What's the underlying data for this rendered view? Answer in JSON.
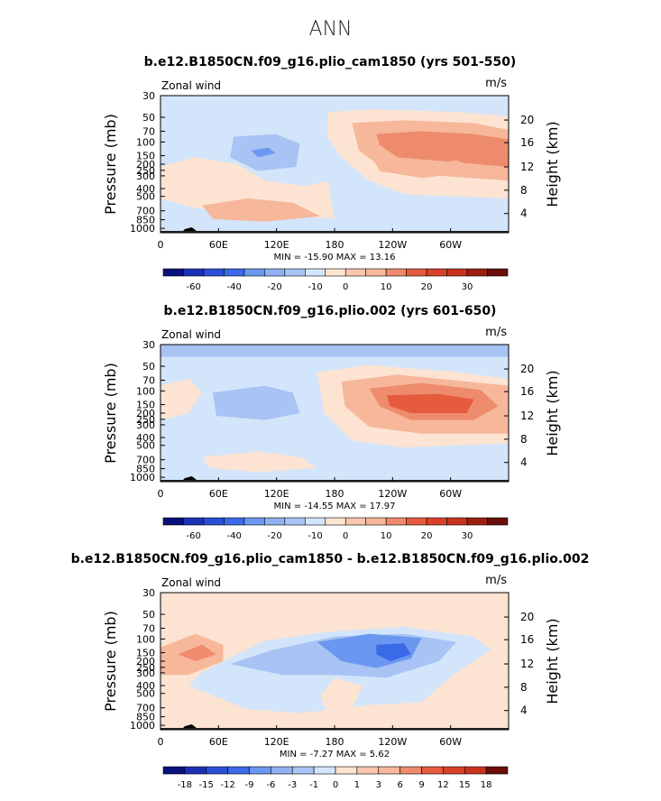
{
  "title": "ANN",
  "colors": {
    "p60": "#08107a",
    "p50": "#1d30b8",
    "p40": "#2a4fd6",
    "p30": "#3a6ae8",
    "p20": "#6c97f0",
    "p10": "#a8c3f4",
    "p0n": "#d3e5fa",
    "p0p": "#fde3d2",
    "p10p": "#f6b79a",
    "p20p": "#ee8b6c",
    "p30p": "#e65b3d",
    "p40p": "#c8331e"
  },
  "panels": [
    {
      "title": "b.e12.B1850CN.f09_g16.plio_cam1850 (yrs 501-550)",
      "left_label": "Zonal wind",
      "right_label": "m/s",
      "min_max": "MIN = -15.90   MAX =  13.16",
      "colorbar_labels": [
        "-60",
        "-40",
        "-20",
        "-10",
        "0",
        "10",
        "20",
        "30"
      ],
      "colorbar_colors": [
        "#08107a",
        "#1d30b8",
        "#2a4fd6",
        "#3a6ae8",
        "#6c97f0",
        "#8fb1f2",
        "#a8c3f4",
        "#d3e5fa",
        "#fde3d2",
        "#f8c7ae",
        "#f6b79a",
        "#ee8b6c",
        "#e65b3d",
        "#d9402a",
        "#c8331e",
        "#9a1f12",
        "#6b0e08"
      ]
    },
    {
      "title": "b.e12.B1850CN.f09_g16.plio.002 (yrs 601-650)",
      "left_label": "Zonal wind",
      "right_label": "m/s",
      "min_max": "MIN = -14.55   MAX =  17.97",
      "colorbar_labels": [
        "-60",
        "-40",
        "-20",
        "-10",
        "0",
        "10",
        "20",
        "30"
      ],
      "colorbar_colors": [
        "#08107a",
        "#1d30b8",
        "#2a4fd6",
        "#3a6ae8",
        "#6c97f0",
        "#8fb1f2",
        "#a8c3f4",
        "#d3e5fa",
        "#fde3d2",
        "#f8c7ae",
        "#f6b79a",
        "#ee8b6c",
        "#e65b3d",
        "#d9402a",
        "#c8331e",
        "#9a1f12",
        "#6b0e08"
      ]
    },
    {
      "title": "b.e12.B1850CN.f09_g16.plio_cam1850 - b.e12.B1850CN.f09_g16.plio.002",
      "left_label": "Zonal wind",
      "right_label": "m/s",
      "min_max": "MIN =  -7.27   MAX =   5.62",
      "colorbar_labels": [
        "-18",
        "-15",
        "-12",
        "-9",
        "-6",
        "-3",
        "-1",
        "0",
        "1",
        "3",
        "6",
        "9",
        "12",
        "15",
        "18"
      ],
      "colorbar_colors": [
        "#08107a",
        "#1d30b8",
        "#2a4fd6",
        "#3a6ae8",
        "#6c97f0",
        "#8fb1f2",
        "#a8c3f4",
        "#d3e5fa",
        "#fde3d2",
        "#f8c7ae",
        "#f6b79a",
        "#ee8b6c",
        "#e65b3d",
        "#d9402a",
        "#c8331e",
        "#6b0e08"
      ]
    }
  ],
  "chart_data": {
    "type": "heatmap",
    "x_ticks": [
      "0",
      "60E",
      "120E",
      "180",
      "120W",
      "60W"
    ],
    "y_left_label": "Pressure (mb)",
    "y_left_ticks": [
      "30",
      "50",
      "70",
      "100",
      "150",
      "200",
      "250",
      "300",
      "400",
      "500",
      "700",
      "850",
      "1000"
    ],
    "y_right_label": "Height (km)",
    "y_right_ticks": [
      "20",
      "16",
      "12",
      "8",
      "4"
    ]
  }
}
